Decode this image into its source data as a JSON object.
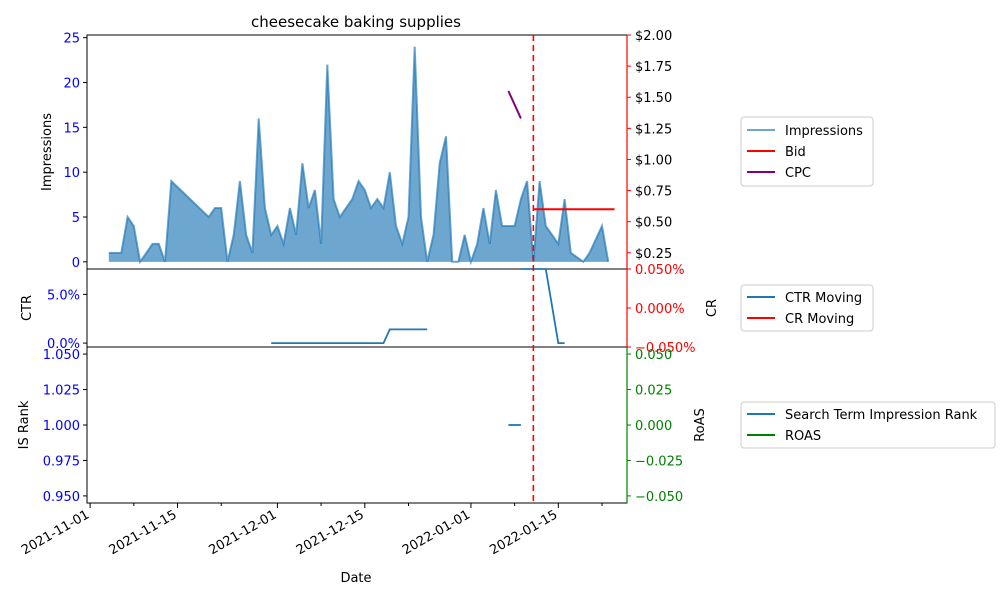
{
  "chart_data": [
    {
      "type": "area",
      "title": "cheesecake baking supplies",
      "ylabel_left": "Impressions",
      "ylim_left": [
        -0.8,
        25.3
      ],
      "yticks_left": [
        "0",
        "5",
        "10",
        "15",
        "20",
        "25"
      ],
      "ylim_right": [
        0.12,
        2.0
      ],
      "yticks_right": [
        "$0.25",
        "$0.50",
        "$0.75",
        "$1.00",
        "$1.25",
        "$1.50",
        "$1.75",
        "$2.00"
      ],
      "legend": [
        "Impressions",
        "Bid",
        "CPC"
      ],
      "series": [
        {
          "name": "Impressions",
          "color": "#1f77b4",
          "x": [
            "2021-11-04",
            "2021-11-05",
            "2021-11-06",
            "2021-11-07",
            "2021-11-08",
            "2021-11-09",
            "2021-11-10",
            "2021-11-11",
            "2021-11-12",
            "2021-11-13",
            "2021-11-14",
            "2021-11-20",
            "2021-11-21",
            "2021-11-22",
            "2021-11-23",
            "2021-11-24",
            "2021-11-25",
            "2021-11-26",
            "2021-11-27",
            "2021-11-28",
            "2021-11-29",
            "2021-11-30",
            "2021-12-01",
            "2021-12-02",
            "2021-12-03",
            "2021-12-04",
            "2021-12-05",
            "2021-12-06",
            "2021-12-07",
            "2021-12-08",
            "2021-12-09",
            "2021-12-10",
            "2021-12-11",
            "2021-12-12",
            "2021-12-13",
            "2021-12-14",
            "2021-12-15",
            "2021-12-16",
            "2021-12-17",
            "2021-12-18",
            "2021-12-19",
            "2021-12-20",
            "2021-12-21",
            "2021-12-22",
            "2021-12-23",
            "2021-12-24",
            "2021-12-25",
            "2021-12-26",
            "2021-12-27",
            "2021-12-28",
            "2021-12-29",
            "2021-12-30",
            "2021-12-31",
            "2022-01-01",
            "2022-01-02",
            "2022-01-03",
            "2022-01-04",
            "2022-01-05",
            "2022-01-06",
            "2022-01-07",
            "2022-01-08",
            "2022-01-09",
            "2022-01-10",
            "2022-01-11",
            "2022-01-12",
            "2022-01-13",
            "2022-01-14",
            "2022-01-15",
            "2022-01-16",
            "2022-01-17",
            "2022-01-18",
            "2022-01-19",
            "2022-01-20",
            "2022-01-21",
            "2022-01-22",
            "2022-01-23"
          ],
          "values": [
            1,
            1,
            1,
            5,
            4,
            0,
            1,
            2,
            2,
            0,
            9,
            5,
            6,
            6,
            0,
            3,
            9,
            3,
            1,
            16,
            6,
            3,
            4,
            2,
            6,
            3,
            11,
            6,
            8,
            2,
            22,
            7,
            5,
            6,
            7,
            9,
            8,
            6,
            7,
            6,
            10,
            4,
            2,
            5,
            24,
            5,
            0,
            3,
            11,
            14,
            0,
            0,
            3,
            0,
            2,
            6,
            2,
            8,
            4,
            4,
            4,
            7,
            9,
            0,
            9,
            4,
            3,
            2,
            7,
            1,
            0.5,
            0,
            1,
            2.5,
            4,
            0
          ]
        },
        {
          "name": "Bid",
          "color": "#ff0000",
          "x": [
            "2022-01-11",
            "2022-01-24"
          ],
          "values": [
            0.6,
            0.6
          ]
        },
        {
          "name": "CPC",
          "color": "#800080",
          "x": [
            "2022-01-07",
            "2022-01-09"
          ],
          "values": [
            1.55,
            1.33
          ]
        }
      ],
      "vline": {
        "x": "2022-01-11",
        "color": "#ff0000",
        "style": "dashed"
      }
    },
    {
      "type": "line",
      "ylabel_left": "CTR",
      "ylabel_right": "CR",
      "yticks_left": [
        "0.0%",
        "5.0%"
      ],
      "yticks_right": [
        "−0.050%",
        "0.000%",
        "0.050%"
      ],
      "ylim_left": [
        -0.4,
        7.6
      ],
      "ylim_right": [
        -0.05,
        0.05
      ],
      "legend": [
        "CTR Moving",
        "CR Moving"
      ],
      "series": [
        {
          "name": "CTR Moving",
          "color": "#1f77b4",
          "x": [
            "2021-11-30",
            "2021-12-18",
            "2021-12-19",
            "2021-12-25",
            "2022-01-09",
            "2022-01-13",
            "2022-01-15",
            "2022-01-16"
          ],
          "values": [
            0.0,
            0.0,
            1.4,
            1.4,
            7.6,
            7.6,
            0.0,
            0.0
          ],
          "segment_break_after": 3
        },
        {
          "name": "CR Moving",
          "color": "#ff0000",
          "x": [],
          "values": []
        }
      ]
    },
    {
      "type": "line",
      "ylabel_left": "IS Rank",
      "ylabel_right": "RoAS",
      "xlabel": "Date",
      "yticks_left": [
        "0.950",
        "0.975",
        "1.000",
        "1.025",
        "1.050"
      ],
      "yticks_right": [
        "−0.050",
        "−0.025",
        "0.000",
        "0.025",
        "0.050"
      ],
      "ylim_left": [
        0.945,
        1.055
      ],
      "ylim_right": [
        -0.055,
        0.055
      ],
      "xticks": [
        "2021-11-01",
        "2021-11-15",
        "2021-12-01",
        "2021-12-15",
        "2022-01-01",
        "2022-01-15"
      ],
      "legend": [
        "Search Term Impression Rank",
        "ROAS"
      ],
      "series": [
        {
          "name": "Search Term Impression Rank",
          "color": "#1f77b4",
          "x": [
            "2022-01-07",
            "2022-01-09"
          ],
          "values": [
            1.0,
            1.0
          ]
        },
        {
          "name": "ROAS",
          "color": "#008000",
          "x": [],
          "values": []
        }
      ]
    }
  ]
}
